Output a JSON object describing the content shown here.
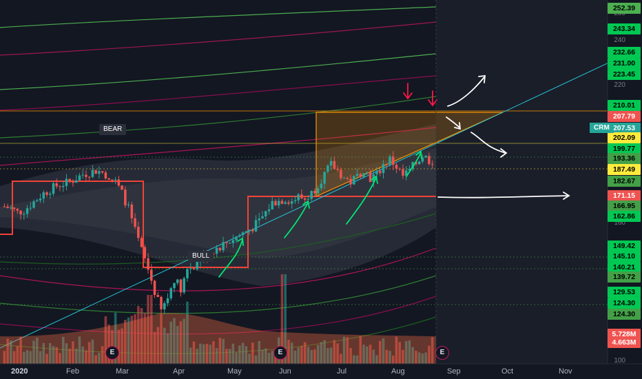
{
  "symbol": "CRM",
  "annotations": {
    "bear": "BEAR",
    "bull": "BULL",
    "earnings": "E"
  },
  "colors": {
    "background": "#131722",
    "up": "#26a69a",
    "down": "#ef5350",
    "trendline": "#2196f3",
    "box": "#f44336",
    "triangle_fill": "#ff9800",
    "arrow_green": "#00e676",
    "arrow_white": "#ffffff",
    "arrow_red": "#ff1744"
  },
  "chart_data": {
    "type": "candlestick",
    "x_ticks": [
      "2020",
      "Feb",
      "Mar",
      "Apr",
      "May",
      "Jun",
      "Jul",
      "Aug",
      "Sep",
      "Oct",
      "Nov"
    ],
    "y_axis_ticks": [
      250,
      240,
      230,
      220,
      160,
      100
    ],
    "price_labels": [
      {
        "value": "252.39",
        "color": "#4caf50",
        "text": "#000000"
      },
      {
        "value": "243.34",
        "color": "#00c853",
        "text": "#000000"
      },
      {
        "value": "232.66",
        "color": "#00c853",
        "text": "#000000"
      },
      {
        "value": "231.00",
        "color": "#00c853",
        "text": "#000000"
      },
      {
        "value": "223.45",
        "color": "#00c853",
        "text": "#000000"
      },
      {
        "value": "210.01",
        "color": "#00c853",
        "text": "#000000"
      },
      {
        "value": "207.79",
        "color": "#ef5350",
        "text": "#ffffff"
      },
      {
        "value": "207.53",
        "color": "#26a69a",
        "text": "#ffffff"
      },
      {
        "value": "202.09",
        "color": "#ffeb3b",
        "text": "#000000"
      },
      {
        "value": "199.77",
        "color": "#00c853",
        "text": "#000000"
      },
      {
        "value": "193.36",
        "color": "#43a047",
        "text": "#000000"
      },
      {
        "value": "187.49",
        "color": "#ffeb3b",
        "text": "#000000"
      },
      {
        "value": "182.67",
        "color": "#43a047",
        "text": "#000000"
      },
      {
        "value": "171.15",
        "color": "#ef5350",
        "text": "#ffffff"
      },
      {
        "value": "166.95",
        "color": "#43a047",
        "text": "#000000"
      },
      {
        "value": "162.86",
        "color": "#00c853",
        "text": "#000000"
      },
      {
        "value": "149.42",
        "color": "#00c853",
        "text": "#000000"
      },
      {
        "value": "145.10",
        "color": "#00c853",
        "text": "#000000"
      },
      {
        "value": "140.21",
        "color": "#00c853",
        "text": "#000000"
      },
      {
        "value": "139.72",
        "color": "#43a047",
        "text": "#000000"
      },
      {
        "value": "129.53",
        "color": "#00c853",
        "text": "#000000"
      },
      {
        "value": "124.30",
        "color": "#00c853",
        "text": "#000000"
      },
      {
        "value": "124.30",
        "color": "#43a047",
        "text": "#000000"
      },
      {
        "value": "5.728M",
        "color": "#ef5350",
        "text": "#ffffff"
      },
      {
        "value": "4.663M",
        "color": "#ef5350",
        "text": "#ffffff"
      }
    ],
    "resistance_levels": [
      210.01,
      202.09,
      199.77,
      193.36,
      187.49,
      171.15,
      145.1,
      140.21,
      124.3
    ],
    "close_series": [
      183,
      182,
      180,
      181,
      184,
      187,
      190,
      192,
      194,
      195,
      196,
      198,
      200,
      201,
      202,
      201,
      199,
      196,
      190,
      182,
      170,
      160,
      150,
      138,
      128,
      135,
      145,
      140,
      150,
      152,
      155,
      158,
      160,
      162,
      164,
      166,
      168,
      170,
      172,
      175,
      180,
      185,
      186,
      187,
      186,
      188,
      187,
      190,
      195,
      200,
      205,
      202,
      198,
      196,
      199,
      203,
      198,
      200,
      205,
      208,
      204,
      199,
      202,
      206,
      210,
      207.53
    ]
  }
}
